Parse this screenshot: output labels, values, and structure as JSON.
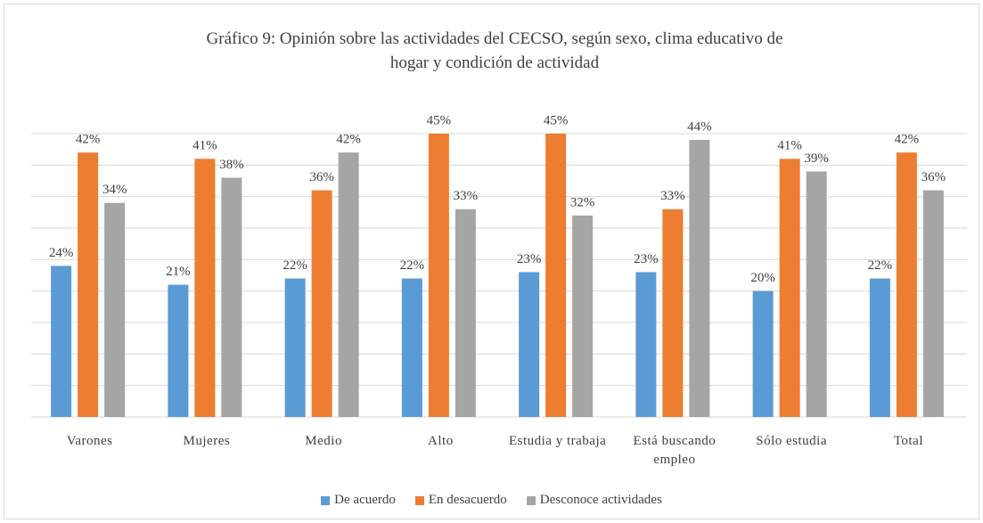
{
  "chart_data": {
    "type": "bar",
    "title": "Gráfico 9: Opinión sobre las actividades del CECSO, según sexo, clima educativo de hogar y condición de actividad",
    "categories": [
      "Varones",
      "Mujeres",
      "Medio",
      "Alto",
      "Estudia y trabaja",
      "Está buscando empleo",
      "Sólo estudia",
      "Total"
    ],
    "series": [
      {
        "name": "De acuerdo",
        "color": "#5b9bd5",
        "values": [
          24,
          21,
          22,
          22,
          23,
          23,
          20,
          22
        ],
        "value_labels": [
          "24%",
          "21%",
          "22%",
          "22%",
          "23%",
          "23%",
          "20%",
          "22%"
        ]
      },
      {
        "name": "En desacuerdo",
        "color": "#ed7d31",
        "values": [
          42,
          41,
          36,
          45,
          45,
          33,
          41,
          42
        ],
        "value_labels": [
          "42%",
          "41%",
          "36%",
          "45%",
          "45%",
          "33%",
          "41%",
          "42%"
        ]
      },
      {
        "name": "Desconoce actividades",
        "color": "#a5a5a5",
        "values": [
          34,
          38,
          42,
          33,
          32,
          44,
          39,
          36
        ],
        "value_labels": [
          "34%",
          "38%",
          "42%",
          "33%",
          "32%",
          "44%",
          "39%",
          "36%"
        ]
      }
    ],
    "ylim": [
      0,
      45
    ],
    "yticks": [
      0,
      5,
      10,
      15,
      20,
      25,
      30,
      35,
      40,
      45
    ],
    "grid": true,
    "legend": "bottom"
  }
}
